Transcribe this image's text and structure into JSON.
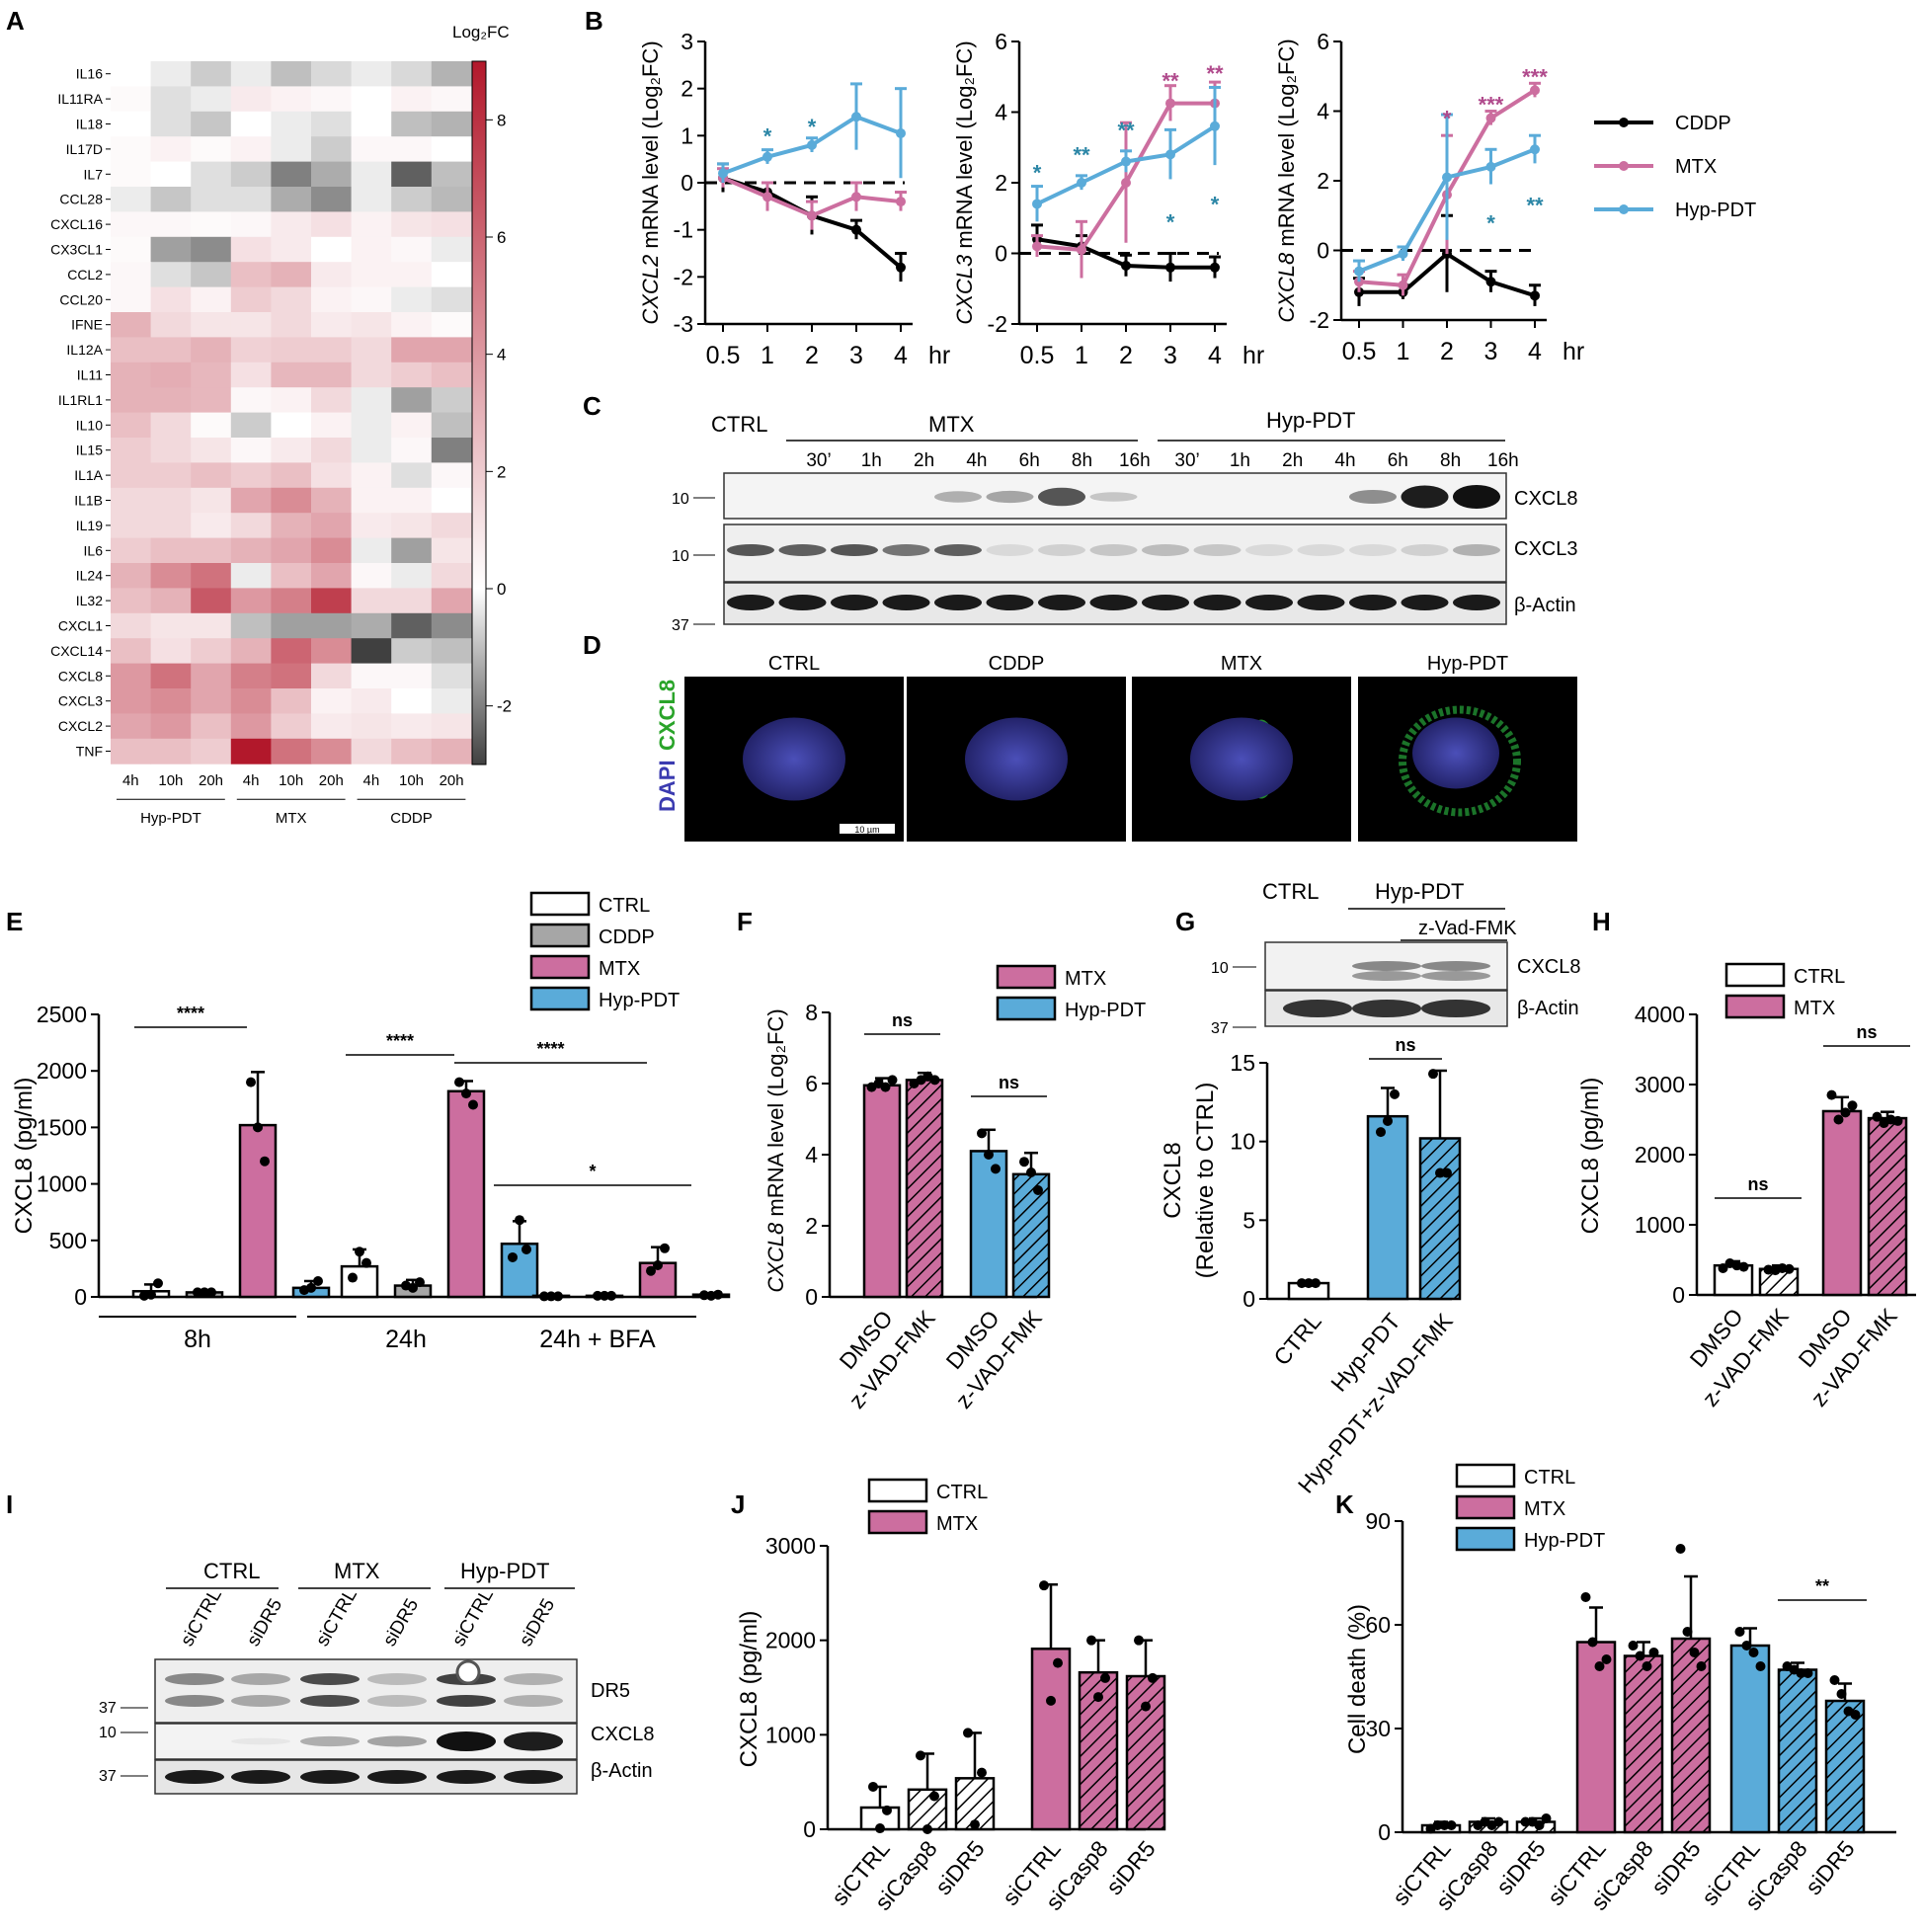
{
  "colors": {
    "cddp": "#000000",
    "mtx": "#cc6e9f",
    "hyp": "#5aabd9",
    "ctrl": "#ffffff",
    "cddp_bar": "#a6a6a6",
    "sig_mtx": "#b04a8c",
    "sig_hyp": "#2b86a6"
  },
  "panels": {
    "A": {
      "label": "A",
      "colorbar_title": "Log₂FC",
      "colorbar_ticks": [
        "8",
        "6",
        "4",
        "2",
        "0",
        "-2"
      ],
      "genes": [
        "IL16",
        "IL11RA",
        "IL18",
        "IL17D",
        "IL7",
        "CCL28",
        "CXCL16",
        "CX3CL1",
        "CCL2",
        "CCL20",
        "IFNE",
        "IL12A",
        "IL11",
        "IL1RL1",
        "IL10",
        "IL15",
        "IL1A",
        "IL1B",
        "IL19",
        "IL6",
        "IL24",
        "IL32",
        "CXCL1",
        "CXCL14",
        "CXCL8",
        "CXCL3",
        "CXCL2",
        "TNF"
      ],
      "columns": [
        "4h",
        "10h",
        "20h",
        "4h",
        "10h",
        "20h",
        "4h",
        "10h",
        "20h"
      ],
      "groups": [
        "Hyp-PDT",
        "MTX",
        "CDDP"
      ]
    },
    "B": {
      "label": "B",
      "x_ticks": [
        "0.5",
        "1",
        "2",
        "3",
        "4"
      ],
      "x_unit": "hr",
      "plots": [
        {
          "gene": "CXCL2",
          "ylabel": " mRNA level (Log₂FC)",
          "y_ticks": [
            "3",
            "2",
            "1",
            "0",
            "-1",
            "-2",
            "-3"
          ]
        },
        {
          "gene": "CXCL3",
          "ylabel": " mRNA level (Log₂FC)",
          "y_ticks": [
            "6",
            "4",
            "2",
            "0",
            "-2"
          ]
        },
        {
          "gene": "CXCL8",
          "ylabel": " mRNA level (Log₂FC)",
          "y_ticks": [
            "6",
            "4",
            "2",
            "0",
            "-2"
          ]
        }
      ],
      "legend": [
        "CDDP",
        "MTX",
        "Hyp-PDT"
      ]
    },
    "C": {
      "label": "C",
      "ctrl": "CTRL",
      "mtx": "MTX",
      "hyp": "Hyp-PDT",
      "lanes": [
        "30’",
        "1h",
        "2h",
        "4h",
        "6h",
        "8h",
        "16h",
        "30’",
        "1h",
        "2h",
        "4h",
        "6h",
        "8h",
        "16h"
      ],
      "bands": [
        "CXCL8",
        "CXCL3",
        "β-Actin"
      ],
      "markers": [
        "10",
        "10",
        "37"
      ]
    },
    "D": {
      "label": "D",
      "images": [
        "CTRL",
        "CDDP",
        "MTX",
        "Hyp-PDT"
      ],
      "ylabel_dapi": "DAPI",
      "ylabel_cxcl8": "CXCL8",
      "scale": "10 µm"
    },
    "E": {
      "label": "E",
      "ylabel": "CXCL8 (pg/ml)",
      "y_ticks": [
        "2500",
        "2000",
        "1500",
        "1000",
        "500",
        "0"
      ],
      "groups": [
        "8h",
        "24h",
        "24h + BFA"
      ],
      "legend": [
        "CTRL",
        "CDDP",
        "MTX",
        "Hyp-PDT"
      ],
      "sig": [
        "****",
        "****",
        "****",
        "*"
      ]
    },
    "F": {
      "label": "F",
      "ylabel_gene": "CXCL8",
      "ylabel": " mRNA level (Log₂FC)",
      "y_ticks": [
        "8",
        "6",
        "4",
        "2",
        "0"
      ],
      "x_labels": [
        "DMSO",
        "z-VAD-FMK",
        "DMSO",
        "z-VAD-FMK"
      ],
      "legend": [
        "MTX",
        "Hyp-PDT"
      ],
      "sig": [
        "ns",
        "ns"
      ]
    },
    "G": {
      "label": "G",
      "ctrl": "CTRL",
      "hyp": "Hyp-PDT",
      "zvad": "z-Vad-FMK",
      "bands": [
        "CXCL8",
        "β-Actin"
      ],
      "markers": [
        "10",
        "37"
      ],
      "ylabel1": "CXCL8",
      "ylabel2": "(Relative to CTRL)",
      "y_ticks": [
        "15",
        "10",
        "5",
        "0"
      ],
      "x_labels": [
        "CTRL",
        "Hyp-PDT",
        "Hyp-PDT+z-VAD-FMK"
      ],
      "sig": [
        "ns"
      ]
    },
    "H": {
      "label": "H",
      "ylabel": "CXCL8 (pg/ml)",
      "y_ticks": [
        "4000",
        "3000",
        "2000",
        "1000",
        "0"
      ],
      "x_labels": [
        "DMSO",
        "z-VAD-FMK",
        "DMSO",
        "z-VAD-FMK"
      ],
      "legend": [
        "CTRL",
        "MTX"
      ],
      "sig": [
        "ns",
        "ns"
      ]
    },
    "I": {
      "label": "I",
      "groups": [
        "CTRL",
        "MTX",
        "Hyp-PDT"
      ],
      "lanes": [
        "siCTRL",
        "siDR5",
        "siCTRL",
        "siDR5",
        "siCTRL",
        "siDR5"
      ],
      "bands": [
        "DR5",
        "CXCL8",
        "β-Actin"
      ],
      "markers": [
        "37",
        "10",
        "37"
      ]
    },
    "J": {
      "label": "J",
      "ylabel": "CXCL8 (pg/ml)",
      "y_ticks": [
        "3000",
        "2000",
        "1000",
        "0"
      ],
      "x_labels": [
        "siCTRL",
        "siCasp8",
        "siDR5",
        "siCTRL",
        "siCasp8",
        "siDR5"
      ],
      "legend": [
        "CTRL",
        "MTX"
      ]
    },
    "K": {
      "label": "K",
      "ylabel": "Cell death (%)",
      "y_ticks": [
        "90",
        "60",
        "30",
        "0"
      ],
      "x_labels": [
        "siCTRL",
        "siCasp8",
        "siDR5",
        "siCTRL",
        "siCasp8",
        "siDR5",
        "siCTRL",
        "siCasp8",
        "siDR5"
      ],
      "legend": [
        "CTRL",
        "MTX",
        "Hyp-PDT"
      ],
      "sig": [
        "**"
      ]
    }
  },
  "chart_data": [
    {
      "type": "heatmap",
      "panel": "A",
      "rows": [
        "IL16",
        "IL11RA",
        "IL18",
        "IL17D",
        "IL7",
        "CCL28",
        "CXCL16",
        "CX3CL1",
        "CCL2",
        "CCL20",
        "IFNE",
        "IL12A",
        "IL11",
        "IL1RL1",
        "IL10",
        "IL15",
        "IL1A",
        "IL1B",
        "IL19",
        "IL6",
        "IL24",
        "IL32",
        "CXCL1",
        "CXCL14",
        "CXCL8",
        "CXCL3",
        "CXCL2",
        "TNF"
      ],
      "columns": [
        "Hyp-PDT 4h",
        "Hyp-PDT 10h",
        "Hyp-PDT 20h",
        "MTX 4h",
        "MTX 10h",
        "MTX 20h",
        "CDDP 4h",
        "CDDP 10h",
        "CDDP 20h"
      ],
      "vmin": -3,
      "vmax": 9,
      "values": [
        [
          0,
          -0.3,
          -0.8,
          -0.3,
          -1.0,
          -0.6,
          -0.3,
          -0.6,
          -1.2
        ],
        [
          0.2,
          -0.5,
          -0.3,
          0.8,
          0.5,
          0.3,
          0,
          0.5,
          0.3
        ],
        [
          0,
          -0.5,
          -0.9,
          0,
          -0.3,
          -0.5,
          0,
          -1.0,
          -1.2
        ],
        [
          0.2,
          0.5,
          0.2,
          0.5,
          -0.3,
          -0.8,
          0.3,
          0.3,
          0
        ],
        [
          0.2,
          0,
          -0.5,
          -0.8,
          -2.0,
          -1.3,
          -0.3,
          -2.5,
          -1.0
        ],
        [
          -0.3,
          -0.9,
          -0.5,
          -0.5,
          -1.3,
          -1.8,
          -0.3,
          -0.8,
          -1.1
        ],
        [
          0.3,
          0.3,
          0.2,
          0.3,
          0.8,
          1.2,
          0.5,
          1.0,
          1.2
        ],
        [
          0.2,
          -1.5,
          -1.8,
          1.2,
          0.8,
          0,
          0.5,
          0.3,
          -0.3
        ],
        [
          0.3,
          -0.5,
          -0.9,
          2.5,
          3.0,
          0.8,
          0.5,
          0.5,
          0
        ],
        [
          0.3,
          1.2,
          0.5,
          2.0,
          1.5,
          0.5,
          0.3,
          -0.3,
          -0.5
        ],
        [
          3.0,
          1.5,
          1.0,
          1.0,
          1.5,
          0.8,
          1.0,
          0.5,
          0.2
        ],
        [
          2.5,
          2.5,
          3.0,
          1.8,
          2.0,
          2.0,
          1.5,
          3.5,
          3.5
        ],
        [
          3.0,
          3.2,
          2.8,
          1.2,
          2.8,
          2.8,
          1.5,
          2.0,
          2.5
        ],
        [
          3.0,
          3.0,
          2.8,
          0.3,
          0.5,
          1.5,
          -0.3,
          -1.5,
          -0.8
        ],
        [
          2.5,
          1.5,
          0.2,
          -0.8,
          0,
          0.5,
          -0.3,
          0.5,
          -1.0
        ],
        [
          2.0,
          1.5,
          1.0,
          0.3,
          0.8,
          1.5,
          -0.3,
          0.3,
          -2.0
        ],
        [
          2.0,
          2.0,
          2.5,
          2.0,
          2.5,
          1.2,
          0.5,
          -0.5,
          0.3
        ],
        [
          1.5,
          1.5,
          1.0,
          3.5,
          4.5,
          3.0,
          0.5,
          0.5,
          0
        ],
        [
          1.5,
          1.5,
          0.8,
          1.5,
          3.0,
          3.5,
          0.8,
          1.0,
          1.5
        ],
        [
          2.0,
          2.5,
          2.5,
          3.0,
          3.5,
          4.5,
          -0.3,
          -1.5,
          1.0
        ],
        [
          3.0,
          4.5,
          5.5,
          -0.3,
          2.5,
          3.5,
          0.3,
          -0.3,
          1.5
        ],
        [
          2.5,
          3.0,
          6.5,
          4.0,
          5.0,
          7.5,
          1.5,
          1.5,
          3.5
        ],
        [
          1.5,
          1.0,
          1.0,
          -1.0,
          -1.5,
          -1.5,
          -1.3,
          -2.5,
          -1.8
        ],
        [
          2.5,
          1.2,
          2.0,
          3.0,
          6.0,
          4.5,
          -3.0,
          -0.8,
          -1.0
        ],
        [
          4.0,
          5.5,
          3.5,
          5.0,
          5.5,
          1.5,
          0.3,
          0.3,
          -0.5
        ],
        [
          4.0,
          4.5,
          3.5,
          4.5,
          2.5,
          0.5,
          0.8,
          0,
          -0.3
        ],
        [
          3.5,
          4.0,
          2.5,
          4.0,
          2.0,
          0.8,
          1.0,
          0.8,
          1.0
        ],
        [
          2.5,
          2.5,
          2.0,
          9.0,
          5.5,
          4.5,
          1.5,
          2.5,
          3.0
        ]
      ]
    },
    {
      "type": "line",
      "panel": "B",
      "title": "CXCL2",
      "x": [
        0.5,
        1,
        2,
        3,
        4
      ],
      "ylim": [
        -3,
        3
      ],
      "series": [
        {
          "name": "CDDP",
          "values": [
            0.1,
            -0.2,
            -0.7,
            -1.0,
            -1.8
          ],
          "err": [
            0.3,
            0.2,
            0.4,
            0.2,
            0.3
          ]
        },
        {
          "name": "MTX",
          "values": [
            0.1,
            -0.3,
            -0.7,
            -0.3,
            -0.4
          ],
          "err": [
            0.2,
            0.3,
            0.3,
            0.3,
            0.2
          ]
        },
        {
          "name": "Hyp-PDT",
          "values": [
            0.2,
            0.55,
            0.8,
            1.4,
            1.05
          ],
          "err": [
            0.2,
            0.15,
            0.15,
            0.7,
            0.95
          ]
        }
      ]
    },
    {
      "type": "line",
      "panel": "B",
      "title": "CXCL3",
      "x": [
        0.5,
        1,
        2,
        3,
        4
      ],
      "ylim": [
        -2,
        6
      ],
      "series": [
        {
          "name": "CDDP",
          "values": [
            0.4,
            0.2,
            -0.35,
            -0.4,
            -0.4
          ],
          "err": [
            0.4,
            0.3,
            0.3,
            0.4,
            0.3
          ]
        },
        {
          "name": "MTX",
          "values": [
            0.2,
            0.1,
            2.0,
            4.25,
            4.25
          ],
          "err": [
            0.3,
            0.8,
            1.7,
            0.5,
            0.6
          ]
        },
        {
          "name": "Hyp-PDT",
          "values": [
            1.4,
            2.0,
            2.6,
            2.8,
            3.6
          ],
          "err": [
            0.5,
            0.2,
            0.3,
            0.7,
            1.1
          ]
        }
      ]
    },
    {
      "type": "line",
      "panel": "B",
      "title": "CXCL8",
      "x": [
        0.5,
        1,
        2,
        3,
        4
      ],
      "ylim": [
        -2,
        6
      ],
      "series": [
        {
          "name": "CDDP",
          "values": [
            -1.2,
            -1.2,
            -0.1,
            -0.9,
            -1.3
          ],
          "err": [
            0.4,
            0.2,
            1.1,
            0.3,
            0.3
          ]
        },
        {
          "name": "MTX",
          "values": [
            -0.9,
            -1.0,
            1.6,
            3.8,
            4.6
          ],
          "err": [
            0.3,
            0.3,
            1.7,
            0.2,
            0.2
          ]
        },
        {
          "name": "Hyp-PDT",
          "values": [
            -0.6,
            -0.1,
            2.1,
            2.4,
            2.9
          ],
          "err": [
            0.3,
            0.2,
            1.8,
            0.5,
            0.4
          ]
        }
      ]
    },
    {
      "type": "bar",
      "panel": "E",
      "categories": [
        "8h",
        "24h",
        "24h + BFA"
      ],
      "ylabel": "CXCL8 (pg/ml)",
      "ylim": [
        0,
        2500
      ],
      "series": [
        {
          "name": "CTRL",
          "values": [
            50,
            270,
            10
          ],
          "err": [
            60,
            150,
            10
          ]
        },
        {
          "name": "CDDP",
          "values": [
            40,
            100,
            10
          ],
          "err": [
            20,
            50,
            10
          ]
        },
        {
          "name": "MTX",
          "values": [
            1520,
            1820,
            300
          ],
          "err": [
            470,
            90,
            140
          ]
        },
        {
          "name": "Hyp-PDT",
          "values": [
            80,
            470,
            20
          ],
          "err": [
            60,
            200,
            10
          ]
        }
      ]
    },
    {
      "type": "bar",
      "panel": "F",
      "categories": [
        "DMSO",
        "z-VAD-FMK",
        "DMSO",
        "z-VAD-FMK"
      ],
      "ylim": [
        0,
        8
      ],
      "values": [
        5.95,
        6.1,
        4.1,
        3.45
      ],
      "err": [
        0.2,
        0.2,
        0.6,
        0.6
      ]
    },
    {
      "type": "bar",
      "panel": "G",
      "categories": [
        "CTRL",
        "Hyp-PDT",
        "Hyp-PDT+z-VAD-FMK"
      ],
      "ylabel": "CXCL8 (Relative to CTRL)",
      "ylim": [
        0,
        15
      ],
      "values": [
        1.0,
        11.6,
        10.2
      ],
      "err": [
        0.1,
        1.8,
        4.3
      ]
    },
    {
      "type": "bar",
      "panel": "H",
      "categories": [
        "DMSO",
        "z-VAD-FMK",
        "DMSO",
        "z-VAD-FMK"
      ],
      "ylabel": "CXCL8 (pg/ml)",
      "ylim": [
        0,
        4000
      ],
      "values": [
        420,
        370,
        2620,
        2520
      ],
      "err": [
        60,
        50,
        200,
        90
      ]
    },
    {
      "type": "bar",
      "panel": "J",
      "categories": [
        "siCTRL",
        "siCasp8",
        "siDR5",
        "siCTRL",
        "siCasp8",
        "siDR5"
      ],
      "ylabel": "CXCL8 (pg/ml)",
      "ylim": [
        0,
        3000
      ],
      "values": [
        230,
        420,
        540,
        1910,
        1660,
        1620
      ],
      "err": [
        220,
        380,
        480,
        680,
        340,
        380
      ]
    },
    {
      "type": "bar",
      "panel": "K",
      "categories": [
        "siCTRL",
        "siCasp8",
        "siDR5",
        "siCTRL",
        "siCasp8",
        "siDR5",
        "siCTRL",
        "siCasp8",
        "siDR5"
      ],
      "ylabel": "Cell death (%)",
      "ylim": [
        0,
        90
      ],
      "values": [
        2,
        3,
        3,
        55,
        51,
        56,
        54,
        47,
        38
      ],
      "err": [
        1,
        1,
        1,
        10,
        4,
        18,
        5,
        2,
        5
      ]
    }
  ]
}
